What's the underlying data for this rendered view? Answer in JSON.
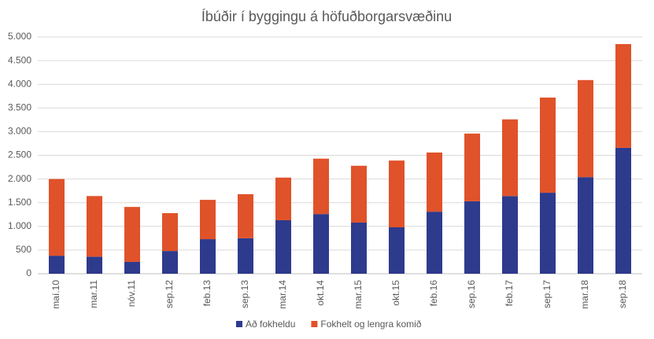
{
  "chart_data": {
    "type": "stacked-bar",
    "title": "Íbúðir í byggingu á höfuðborgarsvæðinu",
    "categories": [
      "maí.10",
      "mar.11",
      "nóv.11",
      "sep.12",
      "feb.13",
      "sep.13",
      "mar.14",
      "okt.14",
      "mar.15",
      "okt.15",
      "feb.16",
      "sep.16",
      "feb.17",
      "sep.17",
      "mar.18",
      "sep.18"
    ],
    "series": [
      {
        "name": "Að fokheldu",
        "color": "#2e3a8c",
        "values": [
          380,
          360,
          250,
          480,
          730,
          750,
          1130,
          1260,
          1080,
          980,
          1310,
          1530,
          1640,
          1710,
          2040,
          2660
        ]
      },
      {
        "name": "Fokhelt og lengra komið",
        "color": "#e0522a",
        "values": [
          1620,
          1280,
          1160,
          800,
          830,
          930,
          900,
          1170,
          1200,
          1410,
          1250,
          1430,
          1620,
          2010,
          2050,
          2190
        ]
      }
    ],
    "ylim": [
      0,
      5000
    ],
    "yticks": [
      0,
      500,
      {
        "value": 1000,
        "label": "1.000"
      },
      {
        "value": 1500,
        "label": "1.500"
      },
      {
        "value": 2000,
        "label": "2.000"
      },
      {
        "value": 2500,
        "label": "2.500"
      },
      {
        "value": 3000,
        "label": "3.000"
      },
      {
        "value": 3500,
        "label": "3.500"
      },
      {
        "value": 4000,
        "label": "4.000"
      },
      {
        "value": 4500,
        "label": "4.500"
      },
      {
        "value": 5000,
        "label": "5.000"
      }
    ],
    "grid": true,
    "legend": "bottom"
  }
}
